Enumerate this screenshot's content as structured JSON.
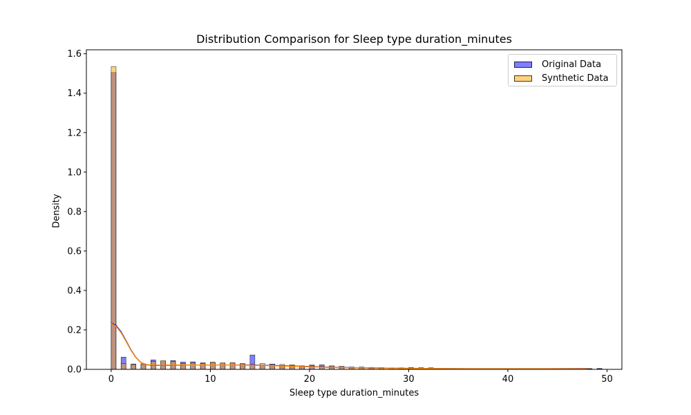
{
  "chart_data": {
    "type": "bar",
    "title": "Distribution Comparison for Sleep type duration_minutes",
    "xlabel": "Sleep type duration_minutes",
    "ylabel": "Density",
    "xlim": [
      -2.5,
      51.5
    ],
    "ylim": [
      0,
      1.62
    ],
    "xticks": [
      0,
      10,
      20,
      30,
      40,
      50
    ],
    "yticks": [
      0.0,
      0.2,
      0.4,
      0.6,
      0.8,
      1.0,
      1.2,
      1.4,
      1.6
    ],
    "grid": false,
    "legend_position": "top-right",
    "bin_width": 0.49,
    "series": [
      {
        "name": "Original Data",
        "color": "#0000ff",
        "kde_color": "#0000ff",
        "bins": [
          [
            0,
            1.505
          ],
          [
            1,
            0.062
          ],
          [
            2,
            0.027
          ],
          [
            3,
            0.025
          ],
          [
            4,
            0.048
          ],
          [
            5,
            0.04
          ],
          [
            6,
            0.045
          ],
          [
            7,
            0.037
          ],
          [
            8,
            0.038
          ],
          [
            9,
            0.033
          ],
          [
            10,
            0.036
          ],
          [
            11,
            0.03
          ],
          [
            12,
            0.033
          ],
          [
            13,
            0.028
          ],
          [
            14,
            0.073
          ],
          [
            15,
            0.02
          ],
          [
            16,
            0.027
          ],
          [
            17,
            0.02
          ],
          [
            18,
            0.02
          ],
          [
            19,
            0.016
          ],
          [
            20,
            0.022
          ],
          [
            21,
            0.023
          ],
          [
            22,
            0.017
          ],
          [
            23,
            0.013
          ],
          [
            24,
            0.011
          ],
          [
            25,
            0.01
          ],
          [
            26,
            0.009
          ],
          [
            27,
            0.008
          ],
          [
            28,
            0.007
          ],
          [
            29,
            0.007
          ],
          [
            30,
            0.008
          ],
          [
            31,
            0.008
          ],
          [
            32,
            0.007
          ],
          [
            33,
            0.003
          ],
          [
            34,
            0.003
          ],
          [
            35,
            0.003
          ],
          [
            36,
            0.003
          ],
          [
            37,
            0.003
          ],
          [
            38,
            0.003
          ],
          [
            39,
            0.003
          ],
          [
            40,
            0.003
          ],
          [
            41,
            0.003
          ],
          [
            42,
            0.003
          ],
          [
            43,
            0.003
          ],
          [
            44,
            0.003
          ],
          [
            45,
            0.003
          ],
          [
            46,
            0.003
          ],
          [
            47,
            0.003
          ],
          [
            48,
            0.004
          ],
          [
            49,
            0.005
          ]
        ]
      },
      {
        "name": "Synthetic Data",
        "color": "#ffa500",
        "kde_color": "#ff8c00",
        "bins": [
          [
            0,
            1.535
          ],
          [
            1,
            0.03
          ],
          [
            2,
            0.025
          ],
          [
            3,
            0.028
          ],
          [
            4,
            0.04
          ],
          [
            5,
            0.045
          ],
          [
            6,
            0.04
          ],
          [
            7,
            0.03
          ],
          [
            8,
            0.032
          ],
          [
            9,
            0.03
          ],
          [
            10,
            0.035
          ],
          [
            11,
            0.033
          ],
          [
            12,
            0.033
          ],
          [
            13,
            0.03
          ],
          [
            14,
            0.025
          ],
          [
            15,
            0.03
          ],
          [
            16,
            0.027
          ],
          [
            17,
            0.025
          ],
          [
            18,
            0.023
          ],
          [
            19,
            0.018
          ],
          [
            20,
            0.018
          ],
          [
            21,
            0.015
          ],
          [
            22,
            0.018
          ],
          [
            23,
            0.016
          ],
          [
            24,
            0.012
          ],
          [
            25,
            0.012
          ],
          [
            26,
            0.01
          ],
          [
            27,
            0.009
          ],
          [
            28,
            0.008
          ],
          [
            29,
            0.008
          ],
          [
            30,
            0.009
          ],
          [
            31,
            0.008
          ],
          [
            32,
            0.008
          ],
          [
            33,
            0.003
          ],
          [
            34,
            0.003
          ],
          [
            35,
            0.003
          ],
          [
            36,
            0.003
          ],
          [
            37,
            0.003
          ],
          [
            38,
            0.003
          ],
          [
            39,
            0.003
          ],
          [
            40,
            0.003
          ],
          [
            41,
            0.003
          ],
          [
            42,
            0.003
          ],
          [
            43,
            0.003
          ],
          [
            44,
            0.003
          ],
          [
            45,
            0.003
          ],
          [
            46,
            0.003
          ],
          [
            47,
            0.003
          ],
          [
            48,
            0.003
          ],
          [
            49,
            0.002
          ]
        ]
      }
    ],
    "kde": {
      "x": [
        0,
        0.5,
        1,
        1.5,
        2,
        2.5,
        3,
        3.5,
        4,
        5,
        6,
        8,
        10,
        12,
        14,
        16,
        18,
        20,
        22,
        25,
        28,
        30,
        33,
        36,
        40,
        44,
        48
      ],
      "original": [
        0.235,
        0.222,
        0.19,
        0.145,
        0.098,
        0.06,
        0.035,
        0.024,
        0.021,
        0.02,
        0.021,
        0.022,
        0.022,
        0.022,
        0.022,
        0.02,
        0.017,
        0.014,
        0.011,
        0.008,
        0.006,
        0.005,
        0.004,
        0.003,
        0.003,
        0.003,
        0.004
      ],
      "synthetic": [
        0.232,
        0.218,
        0.186,
        0.142,
        0.096,
        0.059,
        0.035,
        0.025,
        0.022,
        0.021,
        0.022,
        0.022,
        0.022,
        0.022,
        0.021,
        0.019,
        0.016,
        0.013,
        0.01,
        0.008,
        0.006,
        0.005,
        0.004,
        0.003,
        0.003,
        0.003,
        0.003
      ]
    }
  }
}
